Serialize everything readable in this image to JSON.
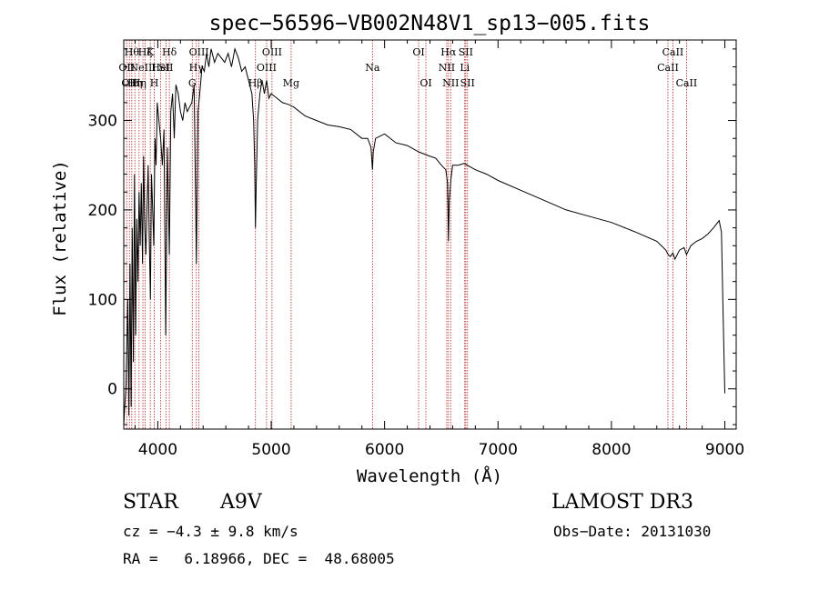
{
  "chart_data": {
    "type": "line",
    "title": "spec−56596−VB002N48V1_sp13−005.fits",
    "xlabel": "Wavelength (Å)",
    "ylabel": "Flux (relative)",
    "xlim": [
      3700,
      9100
    ],
    "ylim": [
      -45,
      390
    ],
    "xticks": [
      4000,
      5000,
      6000,
      7000,
      8000,
      9000
    ],
    "yticks": [
      0,
      100,
      200,
      300
    ],
    "xtick_labels": [
      "4000",
      "5000",
      "6000",
      "7000",
      "8000",
      "9000"
    ],
    "ytick_labels": [
      "0",
      "100",
      "200",
      "300"
    ],
    "grid": false,
    "series": [
      {
        "name": "spectrum",
        "x": [
          3700,
          3720,
          3735,
          3745,
          3755,
          3765,
          3775,
          3785,
          3795,
          3805,
          3815,
          3825,
          3835,
          3845,
          3855,
          3865,
          3875,
          3885,
          3895,
          3905,
          3915,
          3925,
          3935,
          3945,
          3955,
          3965,
          3975,
          3985,
          3995,
          4010,
          4025,
          4040,
          4055,
          4070,
          4085,
          4102,
          4115,
          4130,
          4145,
          4160,
          4180,
          4200,
          4220,
          4240,
          4260,
          4280,
          4300,
          4320,
          4340,
          4355,
          4370,
          4390,
          4410,
          4430,
          4450,
          4470,
          4500,
          4530,
          4560,
          4590,
          4620,
          4650,
          4680,
          4710,
          4740,
          4770,
          4800,
          4830,
          4845,
          4855,
          4861,
          4868,
          4880,
          4900,
          4920,
          4940,
          4960,
          4980,
          5000,
          5050,
          5100,
          5150,
          5200,
          5300,
          5400,
          5500,
          5600,
          5700,
          5800,
          5850,
          5880,
          5893,
          5900,
          5920,
          6000,
          6100,
          6200,
          6300,
          6400,
          6450,
          6500,
          6540,
          6555,
          6563,
          6570,
          6585,
          6600,
          6650,
          6700,
          6800,
          6900,
          7000,
          7200,
          7400,
          7600,
          7800,
          8000,
          8200,
          8400,
          8480,
          8500,
          8520,
          8542,
          8560,
          8600,
          8640,
          8662,
          8700,
          8750,
          8800,
          8850,
          8900,
          8950,
          8970,
          8985,
          9000
        ],
        "y": [
          -40,
          5,
          100,
          -30,
          140,
          -20,
          180,
          30,
          240,
          60,
          190,
          120,
          220,
          160,
          230,
          140,
          260,
          180,
          150,
          200,
          250,
          170,
          100,
          240,
          200,
          160,
          280,
          250,
          320,
          300,
          280,
          250,
          290,
          60,
          270,
          150,
          310,
          330,
          280,
          340,
          330,
          310,
          300,
          320,
          310,
          315,
          320,
          340,
          140,
          310,
          330,
          360,
          355,
          375,
          360,
          380,
          365,
          375,
          370,
          365,
          375,
          360,
          380,
          370,
          355,
          360,
          345,
          330,
          300,
          250,
          180,
          230,
          300,
          330,
          345,
          330,
          345,
          325,
          330,
          325,
          320,
          318,
          315,
          305,
          300,
          295,
          293,
          290,
          280,
          280,
          270,
          245,
          265,
          280,
          285,
          275,
          272,
          265,
          260,
          258,
          250,
          245,
          230,
          165,
          210,
          235,
          250,
          250,
          252,
          245,
          240,
          233,
          222,
          211,
          200,
          193,
          186,
          176,
          165,
          155,
          150,
          148,
          152,
          145,
          155,
          158,
          150,
          160,
          165,
          168,
          173,
          180,
          188,
          175,
          80,
          -5
        ]
      }
    ],
    "lines": [
      {
        "x": 3726,
        "label": "OII",
        "row": 2
      },
      {
        "x": 3750,
        "label": "OII",
        "row": 3
      },
      {
        "x": 3771,
        "label": "Hθ",
        "row": 1
      },
      {
        "x": 3798,
        "label": "Hη",
        "row": 3
      },
      {
        "x": 3835,
        "label": "Hη",
        "row": 3
      },
      {
        "x": 3869,
        "label": "NeIII",
        "row": 2
      },
      {
        "x": 3889,
        "label": "Hζ",
        "row": 1
      },
      {
        "x": 3934,
        "label": "K",
        "row": 1
      },
      {
        "x": 3969,
        "label": "H",
        "row": 3
      },
      {
        "x": 4026,
        "label": "HeI",
        "row": 2
      },
      {
        "x": 4072,
        "label": "SII",
        "row": 2
      },
      {
        "x": 4102,
        "label": "Hδ",
        "row": 1
      },
      {
        "x": 4304,
        "label": "G",
        "row": 3
      },
      {
        "x": 4340,
        "label": "Hγ",
        "row": 2
      },
      {
        "x": 4363,
        "label": "OIII",
        "row": 1
      },
      {
        "x": 4861,
        "label": "Hβ",
        "row": 3
      },
      {
        "x": 4959,
        "label": "OIII",
        "row": 2
      },
      {
        "x": 5007,
        "label": "OIII",
        "row": 1
      },
      {
        "x": 5176,
        "label": "Mg",
        "row": 3
      },
      {
        "x": 5893,
        "label": "Na",
        "row": 2
      },
      {
        "x": 6300,
        "label": "OI",
        "row": 1
      },
      {
        "x": 6364,
        "label": "OI",
        "row": 3
      },
      {
        "x": 6548,
        "label": "NII",
        "row": 2
      },
      {
        "x": 6563,
        "label": "Hα",
        "row": 1
      },
      {
        "x": 6583,
        "label": "NII",
        "row": 3
      },
      {
        "x": 6707,
        "label": "Li",
        "row": 2
      },
      {
        "x": 6716,
        "label": "SII",
        "row": 1
      },
      {
        "x": 6731,
        "label": "SII",
        "row": 3
      },
      {
        "x": 8498,
        "label": "CaII",
        "row": 2
      },
      {
        "x": 8542,
        "label": "CaII",
        "row": 1
      },
      {
        "x": 8662,
        "label": "CaII",
        "row": 3
      }
    ]
  },
  "footer": {
    "object_class": "STAR",
    "subclass": "A9V",
    "survey": "LAMOST DR3",
    "cz": "cz = −4.3 ± 9.8 km/s",
    "obs_date": "Obs−Date: 20131030",
    "radec": "RA =   6.18966, DEC =  48.68005"
  },
  "colors": {
    "axis": "#000000",
    "spectrum": "#000000",
    "line_markers": "#b22222"
  }
}
